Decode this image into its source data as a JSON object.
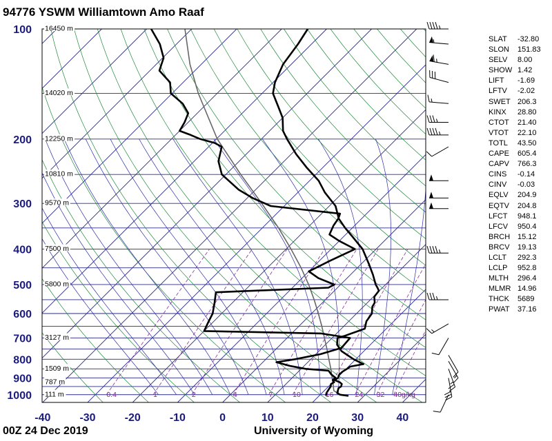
{
  "title": "94776 YSWM Williamtown Amo Raaf",
  "footer": {
    "datetime": "00Z 24 Dec 2019",
    "source": "University of Wyoming"
  },
  "chart_data": {
    "type": "skew-t",
    "pressure_levels": [
      100,
      200,
      300,
      400,
      500,
      600,
      700,
      800,
      900,
      1000
    ],
    "pressure_labels": [
      "100",
      "200",
      "300",
      "400",
      "500",
      "600",
      "700",
      "800",
      "900",
      "1000"
    ],
    "temp_ticks": [
      -40,
      -30,
      -20,
      -10,
      0,
      10,
      20,
      30,
      40
    ],
    "temp_labels": [
      "-40",
      "-30",
      "-20",
      "-10",
      "0",
      "10",
      "20",
      "30",
      "40"
    ],
    "height_labels": [
      {
        "p": 100,
        "text": "16450 m"
      },
      {
        "p": 150,
        "text": "14020 m"
      },
      {
        "p": 200,
        "text": "12250 m"
      },
      {
        "p": 250,
        "text": "10810 m"
      },
      {
        "p": 300,
        "text": "9570 m"
      },
      {
        "p": 400,
        "text": "7500 m"
      },
      {
        "p": 500,
        "text": "5800 m"
      },
      {
        "p": 700,
        "text": "3127 m"
      },
      {
        "p": 850,
        "text": "1509 m"
      },
      {
        "p": 925,
        "text": "787 m"
      },
      {
        "p": 1000,
        "text": "111 m"
      }
    ],
    "mixing_ratio_labels": [
      "0.4",
      "1",
      "2",
      "4",
      "7",
      "10",
      "16",
      "24",
      "32",
      "40g/kg"
    ],
    "mixing_ratio_values": [
      0.4,
      1,
      2,
      4,
      7,
      10,
      16,
      24,
      32,
      40
    ],
    "temperature_profile": [
      [
        1007,
        26.5
      ],
      [
        1000,
        24.4
      ],
      [
        990,
        23.4
      ],
      [
        975,
        23.0
      ],
      [
        960,
        22.6
      ],
      [
        950,
        22.8
      ],
      [
        935,
        22.4
      ],
      [
        925,
        21.6
      ],
      [
        912,
        19.9
      ],
      [
        900,
        20.2
      ],
      [
        880,
        19.7
      ],
      [
        865,
        19.8
      ],
      [
        850,
        20.2
      ],
      [
        838,
        20.4
      ],
      [
        825,
        22.8
      ],
      [
        800,
        19.5
      ],
      [
        760,
        15.0
      ],
      [
        730,
        12.6
      ],
      [
        700,
        11.2
      ],
      [
        690,
        12.4
      ],
      [
        660,
        15.2
      ],
      [
        630,
        13.9
      ],
      [
        600,
        13.4
      ],
      [
        575,
        12.0
      ],
      [
        560,
        11.6
      ],
      [
        540,
        10.2
      ],
      [
        520,
        9.9
      ],
      [
        510,
        8.9
      ],
      [
        500,
        7.8
      ],
      [
        470,
        5.0
      ],
      [
        440,
        1.8
      ],
      [
        400,
        -3.0
      ],
      [
        370,
        -8.0
      ],
      [
        350,
        -11.6
      ],
      [
        330,
        -15.1
      ],
      [
        305,
        -18.6
      ],
      [
        280,
        -24.0
      ],
      [
        260,
        -28.0
      ],
      [
        240,
        -33.4
      ],
      [
        220,
        -38.9
      ],
      [
        200,
        -44.3
      ],
      [
        190,
        -47.0
      ],
      [
        175,
        -50.0
      ],
      [
        165,
        -52.9
      ],
      [
        150,
        -57.6
      ],
      [
        140,
        -59.6
      ],
      [
        125,
        -61.8
      ],
      [
        110,
        -63.0
      ],
      [
        100,
        -64.2
      ]
    ],
    "dewpoint_profile": [
      [
        1007,
        21.5
      ],
      [
        990,
        21.0
      ],
      [
        975,
        20.8
      ],
      [
        960,
        20.6
      ],
      [
        950,
        20.5
      ],
      [
        935,
        20.0
      ],
      [
        925,
        20.3
      ],
      [
        912,
        19.5
      ],
      [
        900,
        19.7
      ],
      [
        880,
        17.9
      ],
      [
        860,
        16.5
      ],
      [
        850,
        11.0
      ],
      [
        835,
        7.0
      ],
      [
        815,
        3.0
      ],
      [
        800,
        6.5
      ],
      [
        775,
        11.0
      ],
      [
        745,
        14.3
      ],
      [
        700,
        14.0
      ],
      [
        680,
        6.5
      ],
      [
        670,
        -20.0
      ],
      [
        635,
        -21.0
      ],
      [
        600,
        -22.0
      ],
      [
        560,
        -24.0
      ],
      [
        525,
        -26.0
      ],
      [
        510,
        -2.0
      ],
      [
        500,
        -1.4
      ],
      [
        480,
        -6.4
      ],
      [
        460,
        -10.0
      ],
      [
        430,
        -7.6
      ],
      [
        400,
        -4.7
      ],
      [
        380,
        -10.0
      ],
      [
        365,
        -13.6
      ],
      [
        345,
        -14.7
      ],
      [
        330,
        -15.2
      ],
      [
        320,
        -15.9
      ],
      [
        305,
        -33.0
      ],
      [
        290,
        -38.8
      ],
      [
        275,
        -43.8
      ],
      [
        250,
        -50.9
      ],
      [
        230,
        -54.6
      ],
      [
        210,
        -57.1
      ],
      [
        205,
        -59.5
      ],
      [
        200,
        -63.6
      ],
      [
        195,
        -66.6
      ],
      [
        190,
        -70.0
      ],
      [
        180,
        -70.8
      ],
      [
        170,
        -72.0
      ],
      [
        160,
        -75.4
      ],
      [
        150,
        -80.3
      ],
      [
        140,
        -82.9
      ],
      [
        130,
        -87.9
      ],
      [
        120,
        -89.8
      ],
      [
        110,
        -93.7
      ],
      [
        100,
        -99.0
      ]
    ],
    "parcel_profile": [
      [
        1000,
        24.4
      ],
      [
        975,
        22.1
      ],
      [
        950,
        21.1
      ],
      [
        925,
        20.0
      ],
      [
        900,
        18.9
      ],
      [
        850,
        16.6
      ],
      [
        800,
        14.0
      ],
      [
        750,
        11.3
      ],
      [
        700,
        8.3
      ],
      [
        650,
        5.1
      ],
      [
        600,
        1.5
      ],
      [
        550,
        -2.5
      ],
      [
        500,
        -7.1
      ],
      [
        450,
        -12.5
      ],
      [
        400,
        -18.9
      ],
      [
        350,
        -26.4
      ],
      [
        300,
        -35.6
      ],
      [
        250,
        -46.7
      ],
      [
        200,
        -59.8
      ],
      [
        150,
        -74.2
      ],
      [
        125,
        -82.5
      ],
      [
        100,
        -91.5
      ]
    ],
    "indices": [
      {
        "name": "SLAT",
        "value": "-32.80"
      },
      {
        "name": "SLON",
        "value": "151.83"
      },
      {
        "name": "SELV",
        "value": "8.00"
      },
      {
        "name": "SHOW",
        "value": "1.42"
      },
      {
        "name": "LIFT",
        "value": "-1.69"
      },
      {
        "name": "LFTV",
        "value": "-2.02"
      },
      {
        "name": "SWET",
        "value": "206.3"
      },
      {
        "name": "KINX",
        "value": "28.80"
      },
      {
        "name": "CTOT",
        "value": "21.40"
      },
      {
        "name": "VTOT",
        "value": "22.10"
      },
      {
        "name": "TOTL",
        "value": "43.50"
      },
      {
        "name": "CAPE",
        "value": "605.4"
      },
      {
        "name": "CAPV",
        "value": "766.3"
      },
      {
        "name": "CINS",
        "value": "-0.14"
      },
      {
        "name": "CINV",
        "value": "-0.03"
      },
      {
        "name": "EQLV",
        "value": "204.9"
      },
      {
        "name": "EQTV",
        "value": "204.8"
      },
      {
        "name": "LFCT",
        "value": "948.1"
      },
      {
        "name": "LFCV",
        "value": "950.4"
      },
      {
        "name": "BRCH",
        "value": "15.12"
      },
      {
        "name": "BRCV",
        "value": "19.13"
      },
      {
        "name": "LCLT",
        "value": "292.3"
      },
      {
        "name": "LCLP",
        "value": "952.8"
      },
      {
        "name": "MLTH",
        "value": "296.4"
      },
      {
        "name": "MLMR",
        "value": "14.96"
      },
      {
        "name": "THCK",
        "value": "5689"
      },
      {
        "name": "PWAT",
        "value": "37.16"
      }
    ],
    "wind_barbs": [
      {
        "p": 100,
        "dir": 270,
        "speed": 45
      },
      {
        "p": 110,
        "dir": 275,
        "speed": 55
      },
      {
        "p": 125,
        "dir": 280,
        "speed": 65
      },
      {
        "p": 140,
        "dir": 285,
        "speed": 30
      },
      {
        "p": 160,
        "dir": 275,
        "speed": 15
      },
      {
        "p": 180,
        "dir": 270,
        "speed": 35
      },
      {
        "p": 195,
        "dir": 270,
        "speed": 45
      },
      {
        "p": 210,
        "dir": 240,
        "speed": 10
      },
      {
        "p": 260,
        "dir": 270,
        "speed": 50
      },
      {
        "p": 290,
        "dir": 270,
        "speed": 50
      },
      {
        "p": 310,
        "dir": 270,
        "speed": 50
      },
      {
        "p": 410,
        "dir": 270,
        "speed": 45
      },
      {
        "p": 550,
        "dir": 270,
        "speed": 35
      },
      {
        "p": 640,
        "dir": 240,
        "speed": 15
      },
      {
        "p": 700,
        "dir": 210,
        "speed": 10
      },
      {
        "p": 780,
        "dir": 150,
        "speed": 10
      },
      {
        "p": 810,
        "dir": 150,
        "speed": 15
      },
      {
        "p": 850,
        "dir": 160,
        "speed": 25
      },
      {
        "p": 900,
        "dir": 170,
        "speed": 30
      },
      {
        "p": 1000,
        "dir": 205,
        "speed": 10
      }
    ]
  }
}
